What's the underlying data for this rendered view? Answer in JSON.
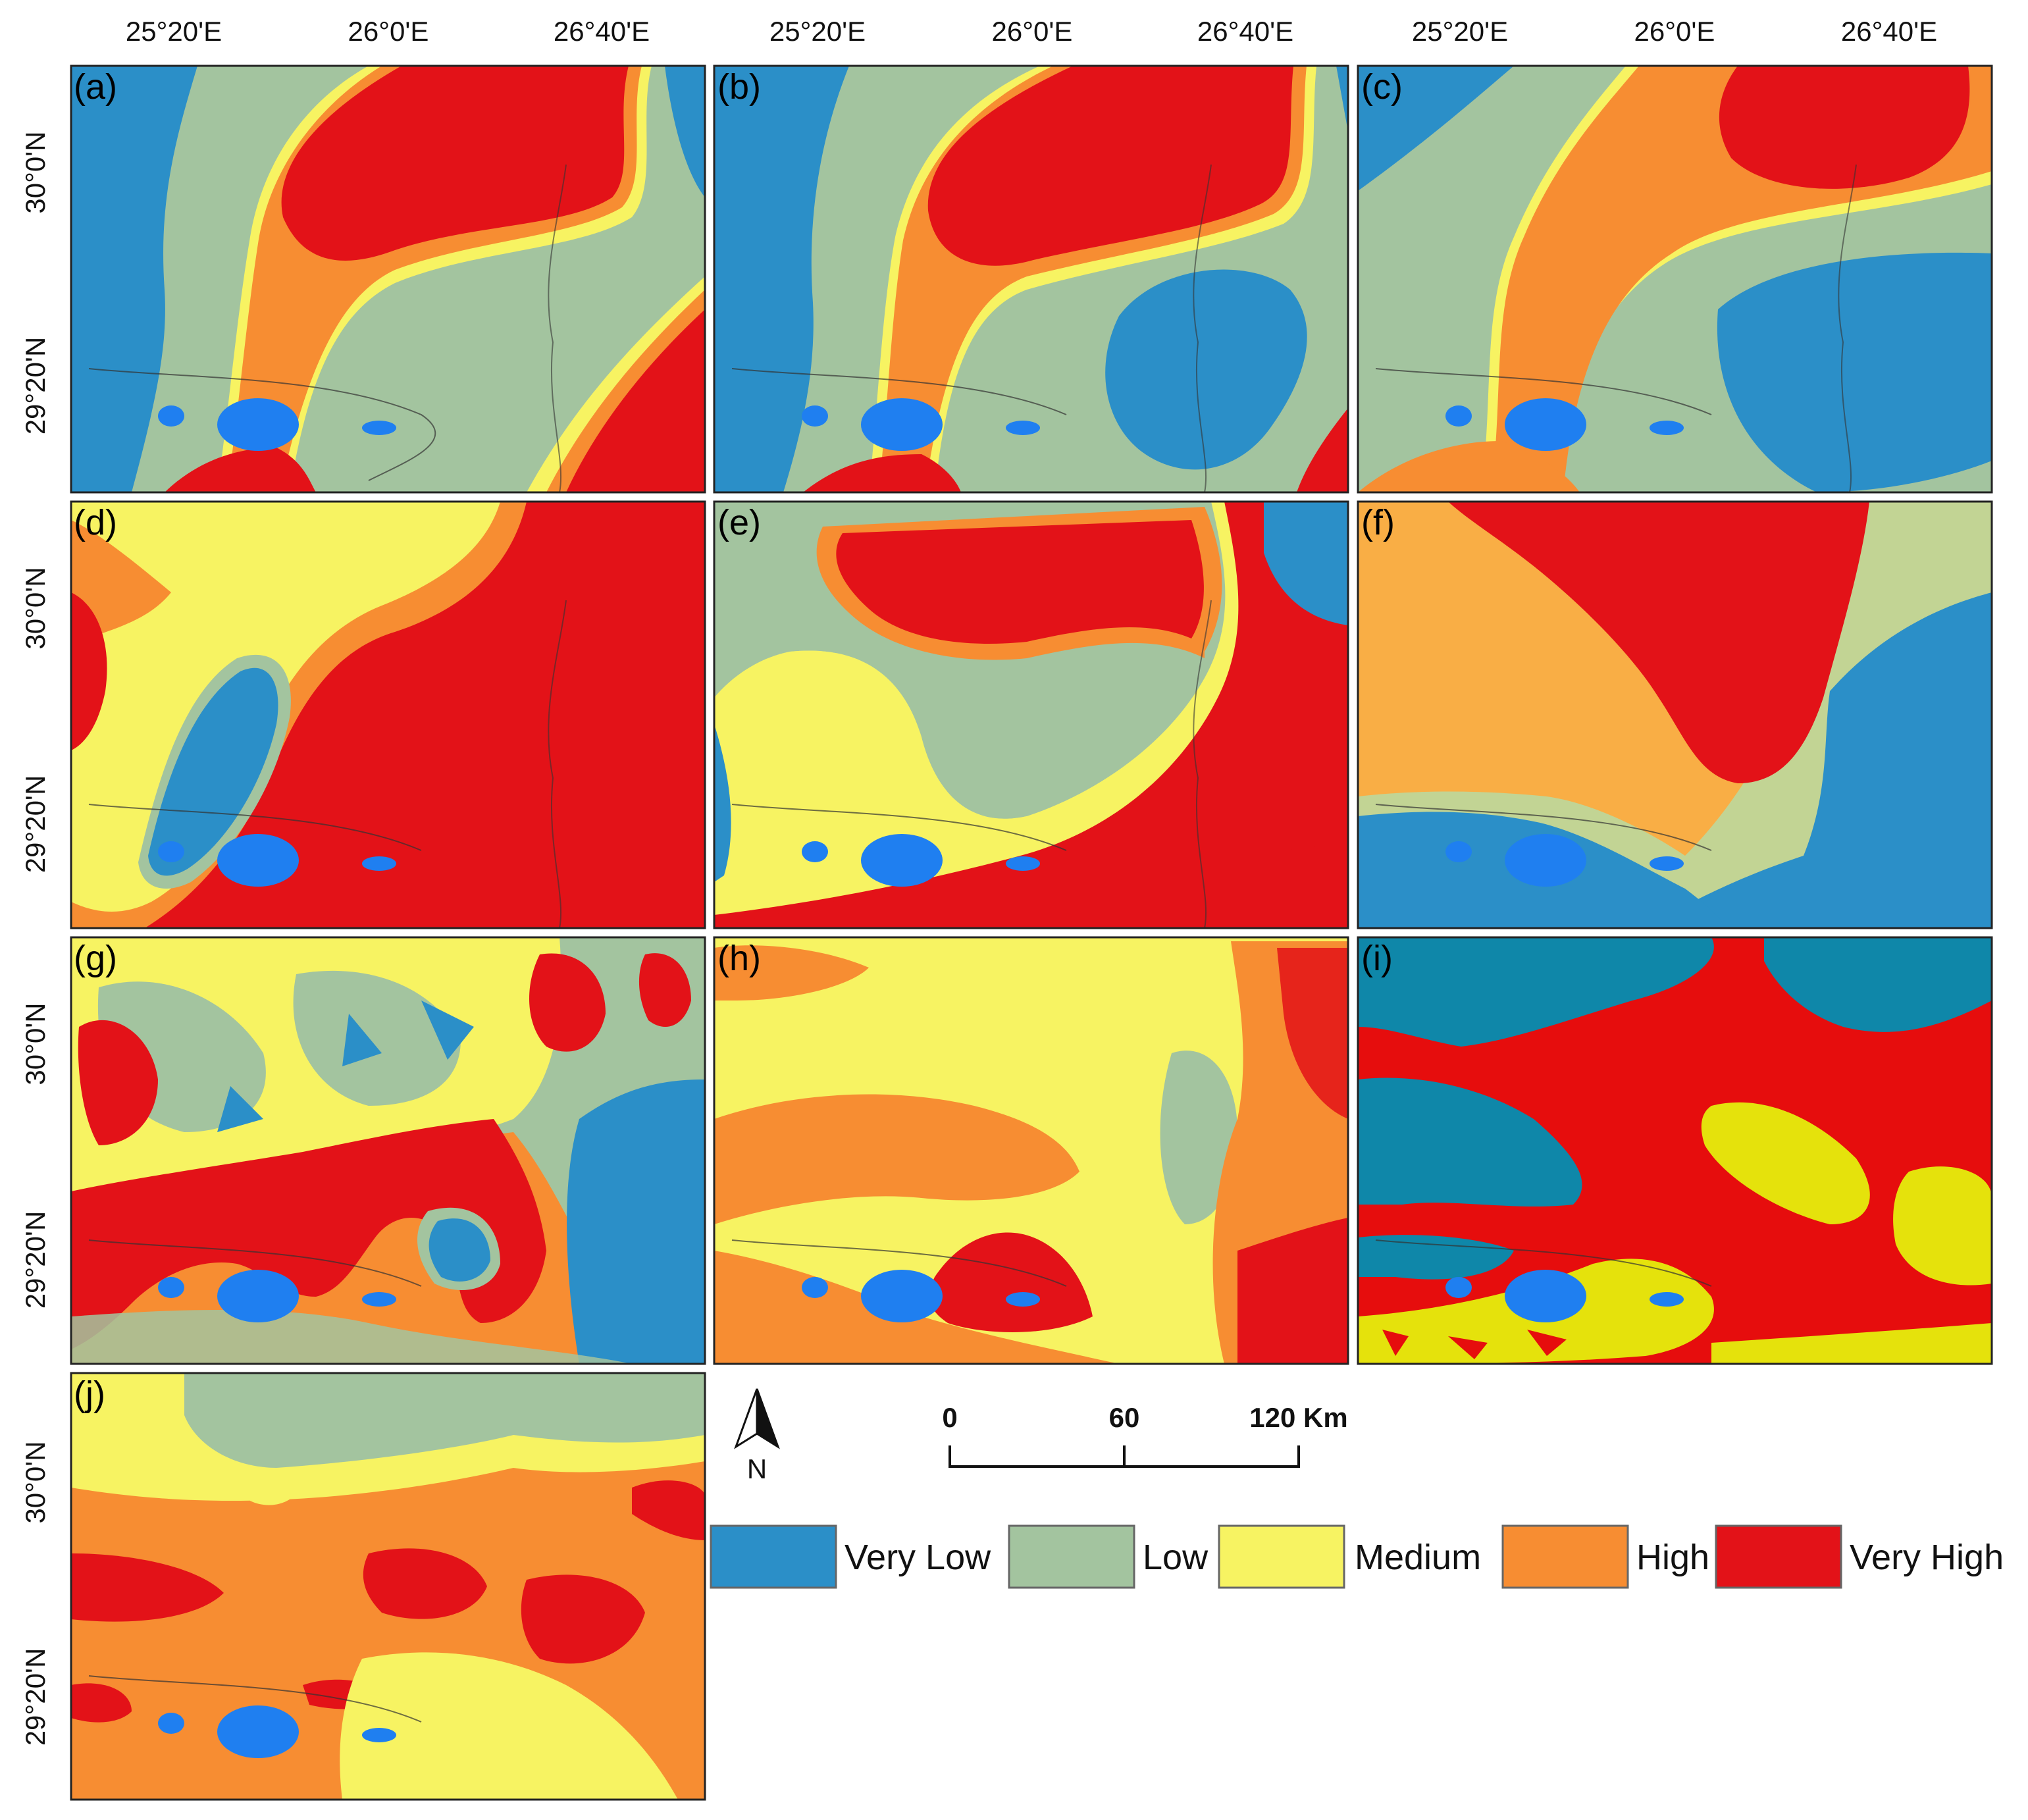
{
  "figure": {
    "top_axis_labels": [
      "25°20'E",
      "26°0'E",
      "26°40'E"
    ],
    "left_axis_labels": [
      "30°0'N",
      "29°20'N"
    ],
    "panels": [
      {
        "id": "a",
        "label": "(a)"
      },
      {
        "id": "b",
        "label": "(b)"
      },
      {
        "id": "c",
        "label": "(c)"
      },
      {
        "id": "d",
        "label": "(d)"
      },
      {
        "id": "e",
        "label": "(e)"
      },
      {
        "id": "f",
        "label": "(f)"
      },
      {
        "id": "g",
        "label": "(g)"
      },
      {
        "id": "h",
        "label": "(h)"
      },
      {
        "id": "i",
        "label": "(i)"
      },
      {
        "id": "j",
        "label": "(j)"
      }
    ],
    "north_arrow": {
      "label": "N"
    },
    "scale_bar": {
      "ticks": [
        "0",
        "60",
        "120 Km"
      ]
    },
    "legend": [
      {
        "label": "Very Low",
        "color": "#2b8fc8"
      },
      {
        "label": "Low",
        "color": "#a3c49f"
      },
      {
        "label": "Medium",
        "color": "#f7f362"
      },
      {
        "label": "High",
        "color": "#f78d32"
      },
      {
        "label": "Very High",
        "color": "#e31218"
      }
    ],
    "colors": {
      "very_low": "#2b8fc8",
      "low": "#a3c49f",
      "medium": "#f7f362",
      "high": "#f78d32",
      "very_high": "#e31218",
      "water": "#1f7ff0",
      "f_high": "#f9ae45",
      "f_low": "#c2d494",
      "i_blue": "#0f87a9",
      "i_red": "#e60d0d",
      "i_yellow": "#e5e20c"
    }
  }
}
